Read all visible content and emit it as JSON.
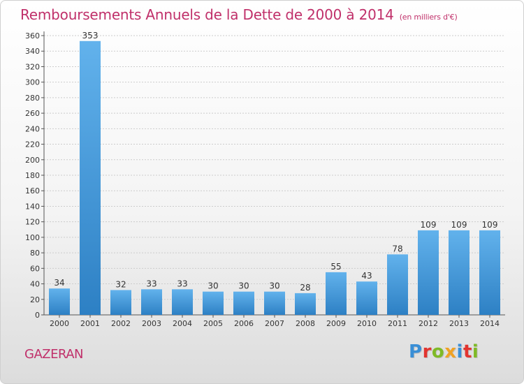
{
  "header": {
    "title": "Remboursements Annuels de la Dette de 2000 à 2014",
    "subtitle": "(en milliers d'€)"
  },
  "footer": {
    "commune": "GAZERAN",
    "brand": "Proxiti",
    "brand_colors": [
      "#3a8fd6",
      "#e2342f",
      "#7fba27",
      "#f0a224",
      "#3a8fd6",
      "#e2342f",
      "#7fba27"
    ]
  },
  "colors": {
    "bar_top": "#62b2ec",
    "bar_bottom": "#2d80c4",
    "text_accent": "#c0306a",
    "grid": "#cccccc"
  },
  "chart_data": {
    "type": "bar",
    "title": "Remboursements Annuels de la Dette de 2000 à 2014",
    "subtitle": "(en milliers d'€)",
    "categories": [
      "2000",
      "2001",
      "2002",
      "2003",
      "2004",
      "2005",
      "2006",
      "2007",
      "2008",
      "2009",
      "2010",
      "2011",
      "2012",
      "2013",
      "2014"
    ],
    "values": [
      34,
      353,
      32,
      33,
      33,
      30,
      30,
      30,
      28,
      55,
      43,
      78,
      109,
      109,
      109
    ],
    "ylim": [
      0,
      360
    ],
    "yticks": [
      0,
      20,
      40,
      60,
      80,
      100,
      120,
      140,
      160,
      180,
      200,
      220,
      240,
      260,
      280,
      300,
      320,
      340,
      360
    ],
    "grid": true,
    "xlabel": "",
    "ylabel": ""
  }
}
